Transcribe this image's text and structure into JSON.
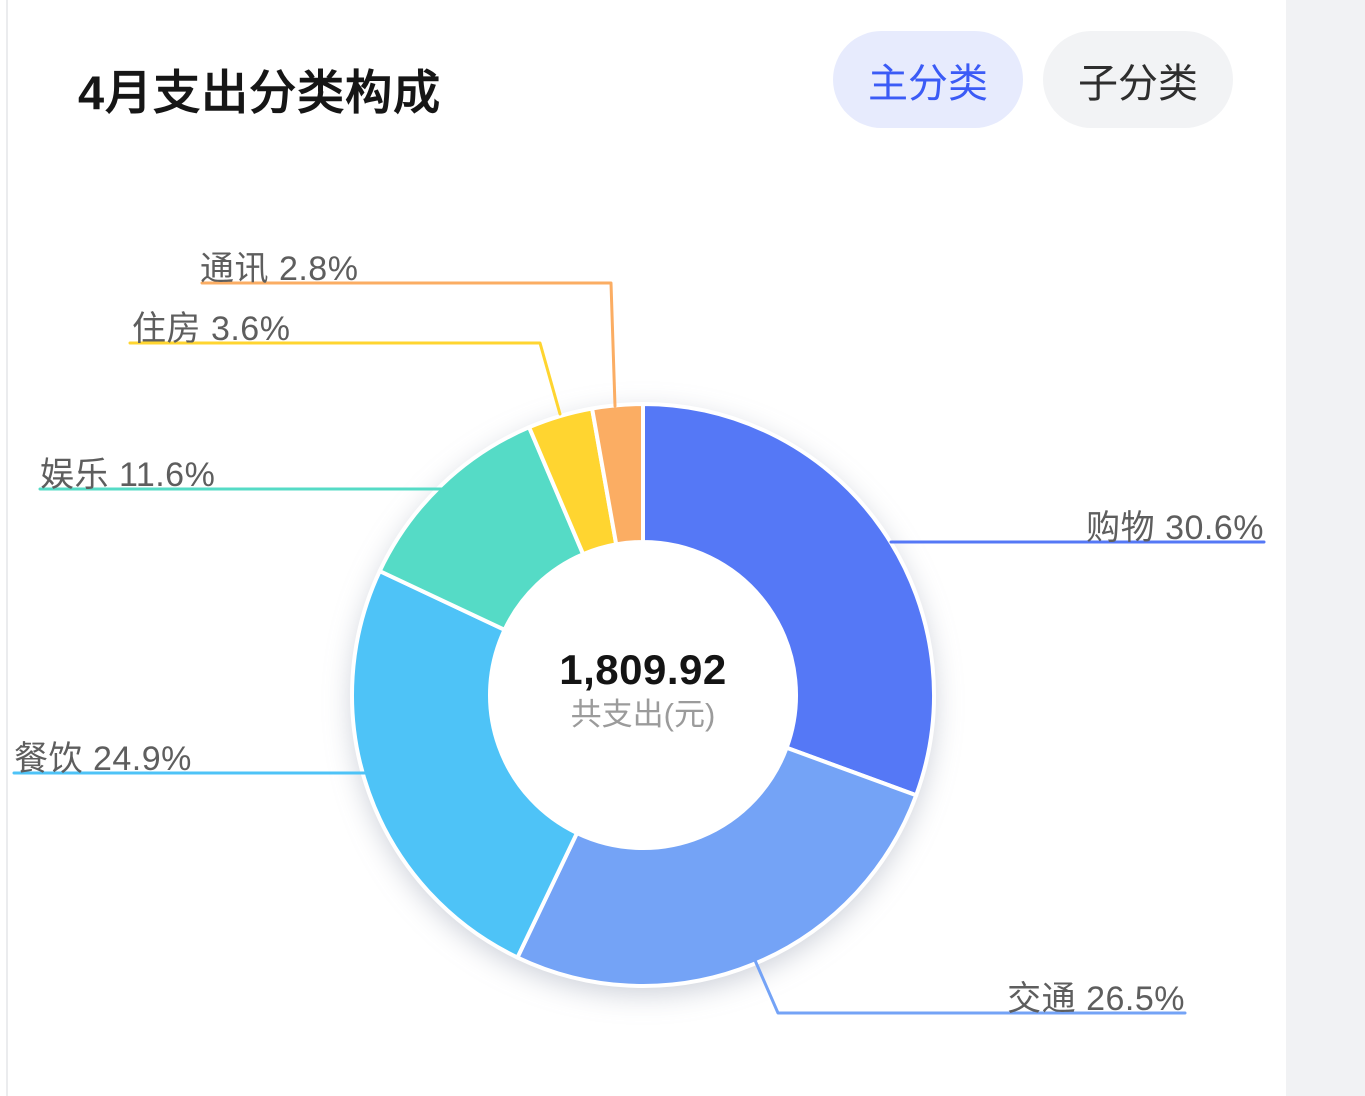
{
  "page": {
    "title": "4月支出分类构成",
    "toggles": [
      {
        "label": "主分类",
        "active": true,
        "text_color": "#3B5BF6",
        "bg_color": "#E7EBFD"
      },
      {
        "label": "子分类",
        "active": false,
        "text_color": "#2E2E2E",
        "bg_color": "#F2F3F5"
      }
    ]
  },
  "center": {
    "amount": "1,809.92",
    "caption": "共支出(元)"
  },
  "chart_data": {
    "type": "pie",
    "variant": "donut",
    "title": "4月支出分类构成",
    "total": "1,809.92",
    "total_caption": "共支出(元)",
    "unit": "元",
    "start_angle_deg": 0,
    "direction": "clockwise",
    "legend": "none",
    "label_format": "{name} {pct}%",
    "series": [
      {
        "key": "shopping",
        "name": "购物",
        "pct": 30.6,
        "color": "#5578F6"
      },
      {
        "key": "transport",
        "name": "交通",
        "pct": 26.5,
        "color": "#74A3F6"
      },
      {
        "key": "dining",
        "name": "餐饮",
        "pct": 24.9,
        "color": "#4EC3F7"
      },
      {
        "key": "entertainment",
        "name": "娱乐",
        "pct": 11.6,
        "color": "#55DBC6"
      },
      {
        "key": "housing",
        "name": "住房",
        "pct": 3.6,
        "color": "#FFD530"
      },
      {
        "key": "communication",
        "name": "通讯",
        "pct": 2.8,
        "color": "#FBAD63"
      }
    ]
  }
}
